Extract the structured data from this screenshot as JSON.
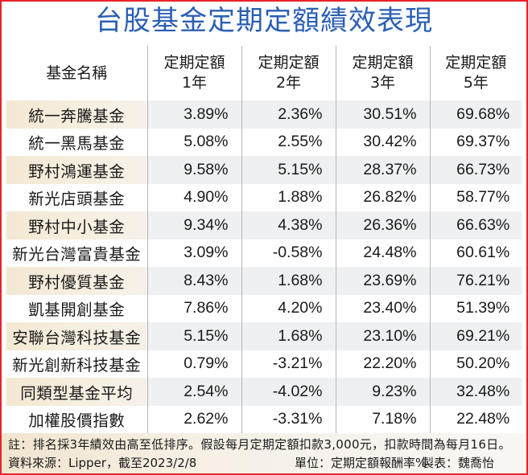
{
  "title": "台股基金定期定額績效表現",
  "table": {
    "headers": [
      {
        "line1": "基金名稱",
        "line2": ""
      },
      {
        "line1": "定期定額",
        "line2": "1年"
      },
      {
        "line1": "定期定額",
        "line2": "2年"
      },
      {
        "line1": "定期定額",
        "line2": "3年"
      },
      {
        "line1": "定期定額",
        "line2": "5年"
      }
    ],
    "rows": [
      {
        "name": "統一奔騰基金",
        "y1": "3.89%",
        "y2": "2.36%",
        "y3": "30.51%",
        "y5": "69.68%"
      },
      {
        "name": "統一黑馬基金",
        "y1": "5.08%",
        "y2": "2.55%",
        "y3": "30.42%",
        "y5": "69.37%"
      },
      {
        "name": "野村鴻運基金",
        "y1": "9.58%",
        "y2": "5.15%",
        "y3": "28.37%",
        "y5": "66.73%"
      },
      {
        "name": "新光店頭基金",
        "y1": "4.90%",
        "y2": "1.88%",
        "y3": "26.82%",
        "y5": "58.77%"
      },
      {
        "name": "野村中小基金",
        "y1": "9.34%",
        "y2": "4.38%",
        "y3": "26.36%",
        "y5": "66.63%"
      },
      {
        "name": "新光台灣富貴基金",
        "y1": "3.09%",
        "y2": "-0.58%",
        "y3": "24.48%",
        "y5": "60.61%"
      },
      {
        "name": "野村優質基金",
        "y1": "8.43%",
        "y2": "1.68%",
        "y3": "23.69%",
        "y5": "76.21%"
      },
      {
        "name": "凱基開創基金",
        "y1": "7.86%",
        "y2": "4.20%",
        "y3": "23.40%",
        "y5": "51.39%"
      },
      {
        "name": "安聯台灣科技基金",
        "y1": "5.15%",
        "y2": "1.68%",
        "y3": "23.10%",
        "y5": "69.21%"
      },
      {
        "name": "新光創新科技基金",
        "y1": "0.79%",
        "y2": "-3.21%",
        "y3": "22.20%",
        "y5": "50.20%"
      },
      {
        "name": "同類型基金平均",
        "y1": "2.54%",
        "y2": "-4.02%",
        "y3": "9.23%",
        "y5": "32.48%"
      },
      {
        "name": "加權股價指數",
        "y1": "2.62%",
        "y2": "-3.31%",
        "y3": "7.18%",
        "y5": "22.48%"
      }
    ]
  },
  "footer": {
    "note": "註：排名採3年績效由高至低排序。假設每月定期定額扣款3,000元，扣款時間為每月16日。",
    "source": "資料來源：Lipper，截至2023/2/8",
    "unit": "單位：定期定額報酬率%",
    "maker": "製表：魏喬怡"
  },
  "colors": {
    "title": "#2b5fb3",
    "border": "#e8242a",
    "name_shade": "#f3e8d2",
    "value_shade": "#eff0f1",
    "divider": "#b7b7b7"
  },
  "chart_data": {
    "type": "table",
    "title": "台股基金定期定額績效表現",
    "columns": [
      "基金名稱",
      "定期定額1年",
      "定期定額2年",
      "定期定額3年",
      "定期定額5年"
    ],
    "unit": "定期定額報酬率%",
    "rows": [
      [
        "統一奔騰基金",
        3.89,
        2.36,
        30.51,
        69.68
      ],
      [
        "統一黑馬基金",
        5.08,
        2.55,
        30.42,
        69.37
      ],
      [
        "野村鴻運基金",
        9.58,
        5.15,
        28.37,
        66.73
      ],
      [
        "新光店頭基金",
        4.9,
        1.88,
        26.82,
        58.77
      ],
      [
        "野村中小基金",
        9.34,
        4.38,
        26.36,
        66.63
      ],
      [
        "新光台灣富貴基金",
        3.09,
        -0.58,
        24.48,
        60.61
      ],
      [
        "野村優質基金",
        8.43,
        1.68,
        23.69,
        76.21
      ],
      [
        "凱基開創基金",
        7.86,
        4.2,
        23.4,
        51.39
      ],
      [
        "安聯台灣科技基金",
        5.15,
        1.68,
        23.1,
        69.21
      ],
      [
        "新光創新科技基金",
        0.79,
        -3.21,
        22.2,
        50.2
      ],
      [
        "同類型基金平均",
        2.54,
        -4.02,
        9.23,
        32.48
      ],
      [
        "加權股價指數",
        2.62,
        -3.31,
        7.18,
        22.48
      ]
    ],
    "notes": "註：排名採3年績效由高至低排序。假設每月定期定額扣款3,000元，扣款時間為每月16日。",
    "source": "資料來源：Lipper，截至2023/2/8"
  }
}
